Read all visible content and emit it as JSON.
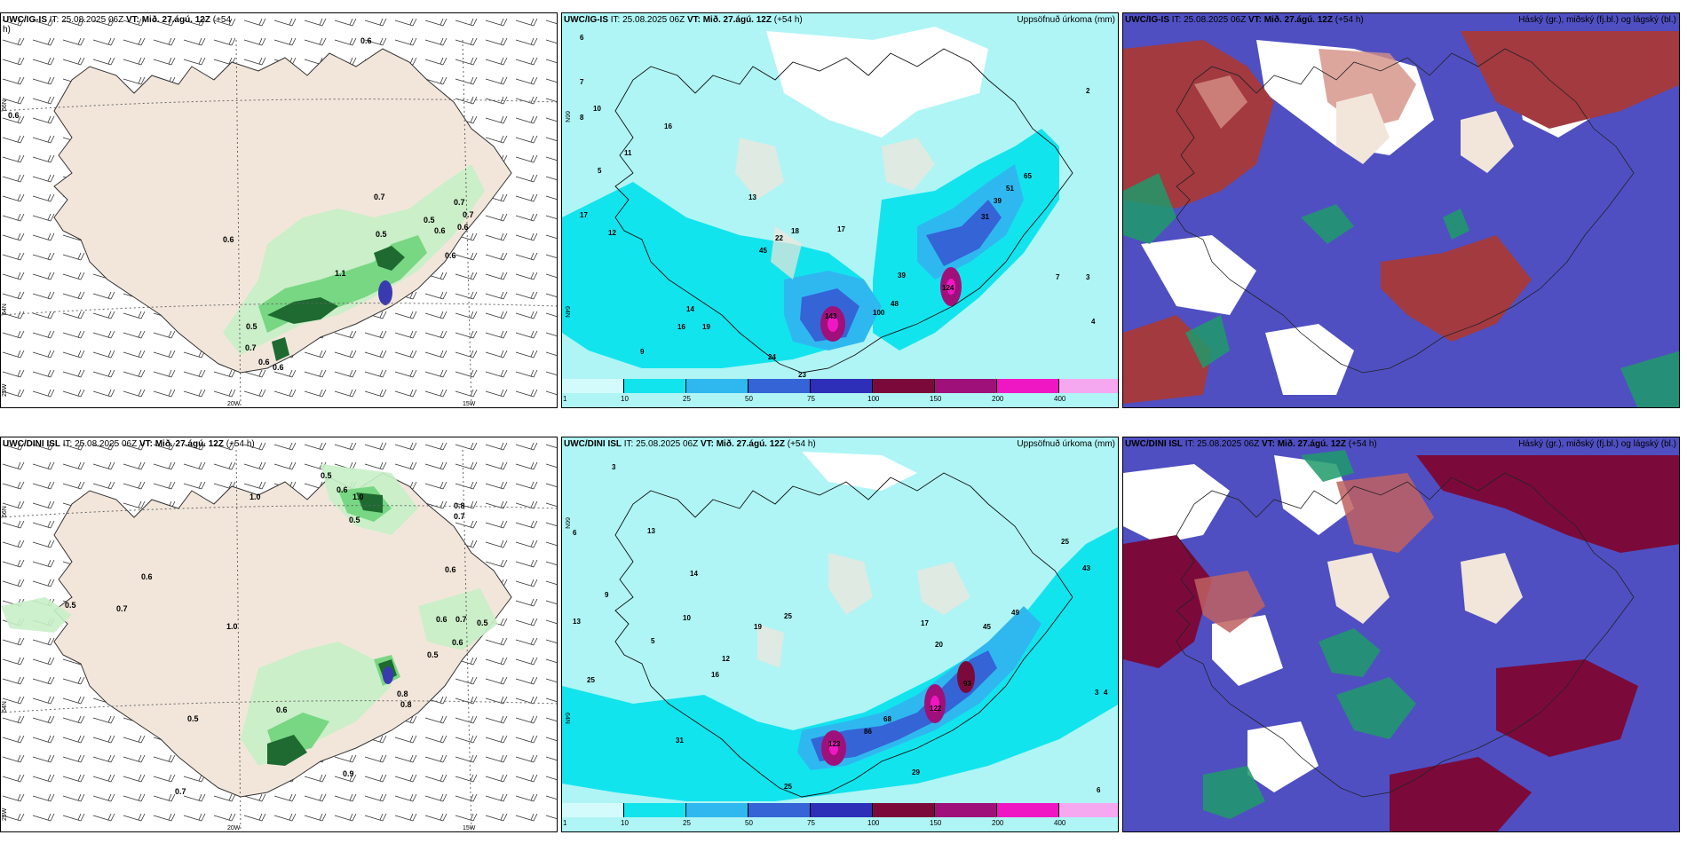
{
  "colors": {
    "land": "#f2e6da",
    "sea_light": "#aff5f5",
    "cyan": "#12e4ee",
    "blue_mid": "#2fb8f0",
    "blue_dark": "#3464d6",
    "navy": "#2d2fb8",
    "maroon": "#7b0a3a",
    "purple": "#a0107a",
    "magenta": "#ef17c4",
    "pink": "#f5a8f0",
    "green_light": "#c6f0c6",
    "green_mid": "#6ed47a",
    "green_dark": "#1e6a30",
    "cloud_high": "#a23a40",
    "cloud_mid": "#1f9a6a",
    "cloud_low": "#4f4fc2"
  },
  "panels": {
    "top_left": {
      "model": "UWC/IG-IS",
      "header_rest": " IT: 25.08.2025 06Z ",
      "vt_label": "VT: Mið. 27.ágú. 12Z",
      "lead": " (+54",
      "lead_wrap": "h)",
      "axis": {
        "lat1": "66N",
        "lat2": "64N",
        "lon_w": "25W",
        "lon1": "20W",
        "lon2": "15W"
      },
      "labels": [
        "0.6",
        "0.7",
        "0.6",
        "0.5",
        "0.7",
        "0.6",
        "0.6",
        "0.5",
        "0.7",
        "0.6",
        "1.1",
        "0.5",
        "0.7",
        "0.6",
        "0.6",
        "0.6"
      ]
    },
    "top_mid": {
      "model": "UWC/IG-IS",
      "header_rest": " IT: 25.08.2025 06Z ",
      "vt_label": "VT: Mið. 27.ágú. 12Z",
      "lead": " (+54 h)",
      "right_title": "Uppsöfnuð úrkoma (mm)",
      "axis": {
        "lat1": "66N",
        "lat2": "64N"
      },
      "labels": [
        "6",
        "7",
        "10",
        "8",
        "5",
        "16",
        "13",
        "11",
        "17",
        "12",
        "22",
        "45",
        "18",
        "17",
        "14",
        "16",
        "19",
        "24",
        "23",
        "9",
        "143",
        "100",
        "48",
        "39",
        "124",
        "31",
        "39",
        "51",
        "65",
        "3",
        "2",
        "4",
        "7"
      ],
      "colorbar_ticks": [
        "1",
        "10",
        "25",
        "50",
        "75",
        "100",
        "150",
        "200",
        "400"
      ]
    },
    "top_right": {
      "model": "UWC/IG-IS",
      "header_rest": " IT: 25.08.2025 06Z ",
      "vt_label": "VT: Mið. 27.ágú. 12Z",
      "lead": " (+54 h)",
      "right_title": "Háský (gr.), miðský (fj.bl.) og lágský (bl.)"
    },
    "bottom_left": {
      "model": "UWC/DINI ISL",
      "header_rest": " IT: 25.08.2025 06Z ",
      "vt_label": "VT: Mið. 27.ágú. 12Z",
      "lead": " (+54 h)",
      "axis": {
        "lat1": "66N",
        "lat2": "64N",
        "lon_w": "25W",
        "lon1": "20W",
        "lon2": "15W"
      },
      "labels": [
        "0.5",
        "1.0",
        "0.6",
        "0.5",
        "1.0",
        "0.8",
        "0.7",
        "0.6",
        "0.5",
        "0.7",
        "0.6",
        "1.0",
        "0.6",
        "0.7",
        "0.5",
        "0.6",
        "0.8",
        "0.5",
        "0.5",
        "0.9",
        "0.7",
        "0.6",
        "0.8"
      ]
    },
    "bottom_mid": {
      "model": "UWC/DINI ISL",
      "header_rest": " IT: 25.08.2025 06Z ",
      "vt_label": "VT: Mið. 27.ágú. 12Z",
      "lead": " (+54 h)",
      "right_title": "Uppsöfnuð úrkoma (mm)",
      "axis": {
        "lat1": "66N",
        "lat2": "64N"
      },
      "labels": [
        "3",
        "6",
        "13",
        "25",
        "9",
        "5",
        "14",
        "13",
        "10",
        "19",
        "25",
        "12",
        "16",
        "31",
        "25",
        "123",
        "86",
        "68",
        "122",
        "29",
        "93",
        "45",
        "25",
        "17",
        "20",
        "49",
        "43",
        "3",
        "4",
        "6"
      ],
      "colorbar_ticks": [
        "1",
        "10",
        "25",
        "50",
        "75",
        "100",
        "150",
        "200",
        "400"
      ]
    },
    "bottom_right": {
      "model": "UWC/DINI ISL",
      "header_rest": " IT: 25.08.2025 06Z ",
      "vt_label": "VT: Mið. 27.ágú. 12Z",
      "lead": " (+54 h)",
      "right_title": "Háský (gr.), miðský (fj.bl.) og lágský (bl.)"
    }
  }
}
